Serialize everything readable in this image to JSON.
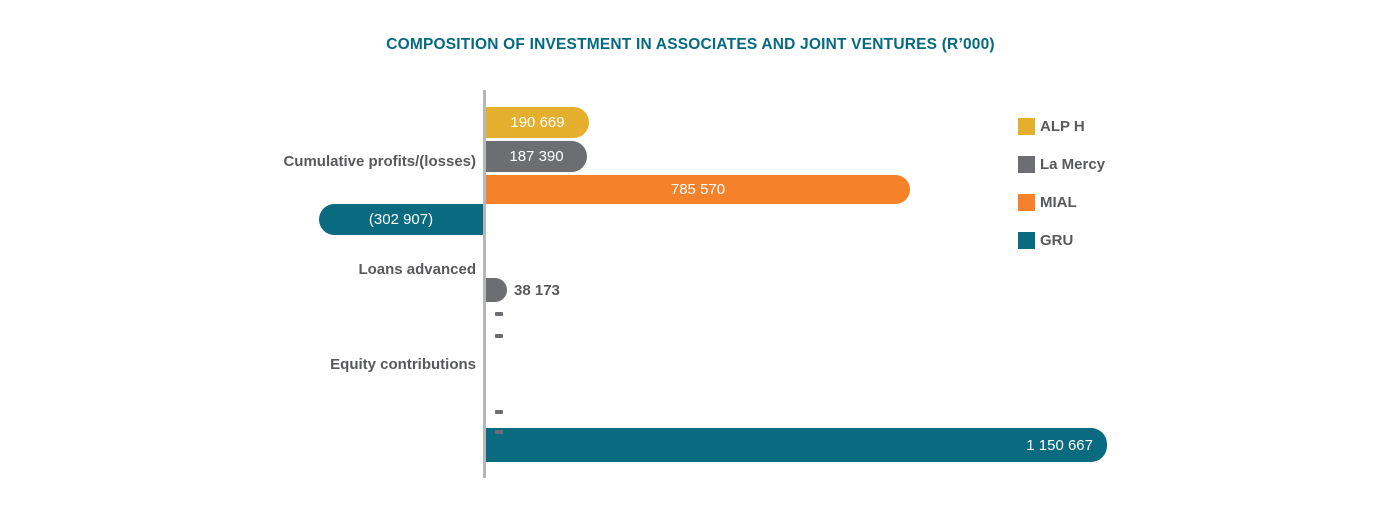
{
  "title": {
    "text": "COMPOSITION OF INVESTMENT IN ASSOCIATES AND JOINT VENTURES (R’000)",
    "color": "#056a80"
  },
  "chart_data": {
    "type": "bar",
    "orientation": "horizontal",
    "title": "COMPOSITION OF INVESTMENT IN ASSOCIATES AND JOINT VENTURES (R’000)",
    "value_unit": "R'000",
    "xlabel": "",
    "ylabel": "",
    "gridlines": false,
    "value_axis_ticks_visible": false,
    "baseline": 0,
    "legend_position": "right",
    "negative_format": "parentheses",
    "zero_format": "-",
    "categories": [
      "Cumulative profits/(losses)",
      "Loans advanced",
      "Equity contributions"
    ],
    "series": [
      {
        "name": "ALP H",
        "color": "#e4af2d",
        "values": [
          190669,
          null,
          null
        ],
        "labels": [
          "190 669",
          null,
          null
        ]
      },
      {
        "name": "La Mercy",
        "color": "#6d6e71",
        "values": [
          187390,
          38173,
          0
        ],
        "labels": [
          "187 390",
          "38 173",
          "-"
        ]
      },
      {
        "name": "MIAL",
        "color": "#f5822a",
        "values": [
          785570,
          0,
          0
        ],
        "labels": [
          "785 570",
          "-",
          "-"
        ]
      },
      {
        "name": "GRU",
        "color": "#0a6a80",
        "values": [
          -302907,
          0,
          1150667
        ],
        "labels": [
          "(302 907)",
          "-",
          "1 150 667"
        ]
      }
    ],
    "colors": {
      "title": "#056a80",
      "category_labels": "#58595b",
      "bar_value_labels_inside": "#ffffff",
      "bar_value_labels_outside": "#58595b",
      "zero_dash": "#6d6e71",
      "axis_line": "#b5b7b9"
    }
  }
}
